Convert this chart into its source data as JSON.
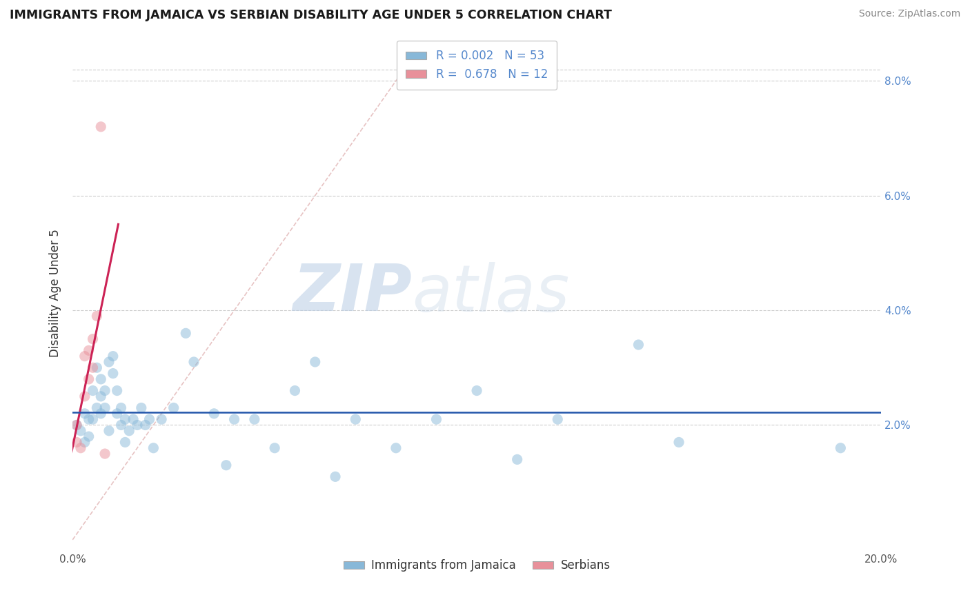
{
  "title": "IMMIGRANTS FROM JAMAICA VS SERBIAN DISABILITY AGE UNDER 5 CORRELATION CHART",
  "source": "Source: ZipAtlas.com",
  "ylabel": "Disability Age Under 5",
  "xlim": [
    0.0,
    0.2
  ],
  "ylim": [
    -0.002,
    0.088
  ],
  "xticks": [
    0.0,
    0.05,
    0.1,
    0.15,
    0.2
  ],
  "xtick_labels": [
    "0.0%",
    "",
    "",
    "",
    "20.0%"
  ],
  "yticks": [
    0.0,
    0.02,
    0.04,
    0.06,
    0.08
  ],
  "ytick_labels_right": [
    "",
    "2.0%",
    "4.0%",
    "6.0%",
    "8.0%"
  ],
  "legend_labels_bottom": [
    "Immigrants from Jamaica",
    "Serbians"
  ],
  "blue_scatter": [
    [
      0.001,
      0.02
    ],
    [
      0.002,
      0.019
    ],
    [
      0.003,
      0.022
    ],
    [
      0.003,
      0.017
    ],
    [
      0.004,
      0.021
    ],
    [
      0.004,
      0.018
    ],
    [
      0.005,
      0.026
    ],
    [
      0.005,
      0.021
    ],
    [
      0.006,
      0.03
    ],
    [
      0.006,
      0.023
    ],
    [
      0.007,
      0.028
    ],
    [
      0.007,
      0.025
    ],
    [
      0.007,
      0.022
    ],
    [
      0.008,
      0.026
    ],
    [
      0.008,
      0.023
    ],
    [
      0.009,
      0.031
    ],
    [
      0.009,
      0.019
    ],
    [
      0.01,
      0.032
    ],
    [
      0.01,
      0.029
    ],
    [
      0.011,
      0.026
    ],
    [
      0.011,
      0.022
    ],
    [
      0.012,
      0.023
    ],
    [
      0.012,
      0.02
    ],
    [
      0.013,
      0.021
    ],
    [
      0.013,
      0.017
    ],
    [
      0.014,
      0.019
    ],
    [
      0.015,
      0.021
    ],
    [
      0.016,
      0.02
    ],
    [
      0.017,
      0.023
    ],
    [
      0.018,
      0.02
    ],
    [
      0.019,
      0.021
    ],
    [
      0.02,
      0.016
    ],
    [
      0.022,
      0.021
    ],
    [
      0.025,
      0.023
    ],
    [
      0.028,
      0.036
    ],
    [
      0.03,
      0.031
    ],
    [
      0.035,
      0.022
    ],
    [
      0.038,
      0.013
    ],
    [
      0.04,
      0.021
    ],
    [
      0.045,
      0.021
    ],
    [
      0.05,
      0.016
    ],
    [
      0.055,
      0.026
    ],
    [
      0.06,
      0.031
    ],
    [
      0.065,
      0.011
    ],
    [
      0.07,
      0.021
    ],
    [
      0.08,
      0.016
    ],
    [
      0.09,
      0.021
    ],
    [
      0.1,
      0.026
    ],
    [
      0.11,
      0.014
    ],
    [
      0.12,
      0.021
    ],
    [
      0.14,
      0.034
    ],
    [
      0.15,
      0.017
    ],
    [
      0.19,
      0.016
    ]
  ],
  "pink_scatter": [
    [
      0.001,
      0.017
    ],
    [
      0.001,
      0.02
    ],
    [
      0.002,
      0.016
    ],
    [
      0.003,
      0.032
    ],
    [
      0.003,
      0.025
    ],
    [
      0.004,
      0.033
    ],
    [
      0.004,
      0.028
    ],
    [
      0.005,
      0.035
    ],
    [
      0.005,
      0.03
    ],
    [
      0.006,
      0.039
    ],
    [
      0.007,
      0.072
    ],
    [
      0.008,
      0.015
    ]
  ],
  "pink_outlier": [
    0.009,
    0.072
  ],
  "dot_size": 120,
  "dot_alpha": 0.5,
  "blue_color": "#88b8d8",
  "pink_color": "#e8909a",
  "trendline_blue_color": "#2255aa",
  "trendline_pink_color": "#cc2255",
  "diag_color": "#d8d8e8",
  "grid_color": "#cccccc",
  "grid_style": "--",
  "watermark_zip": "ZIP",
  "watermark_atlas": "atlas",
  "ytick_color": "#5588cc",
  "xtick_color": "#555555"
}
